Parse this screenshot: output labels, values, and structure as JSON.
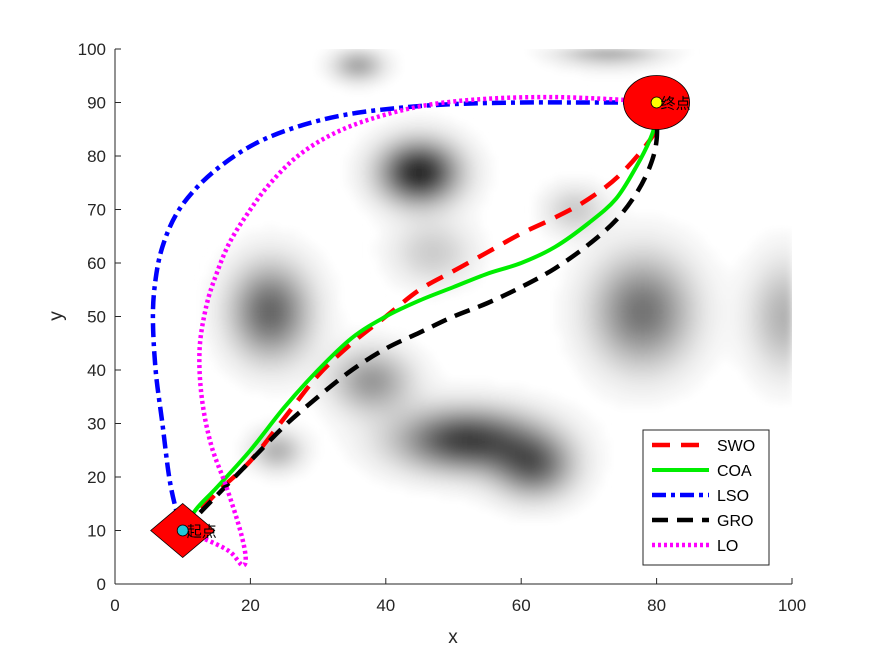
{
  "chart_data": {
    "type": "line",
    "xlabel": "x",
    "ylabel": "y",
    "xlim": [
      0,
      100
    ],
    "ylim": [
      0,
      100
    ],
    "xticks": [
      0,
      20,
      40,
      60,
      80,
      100
    ],
    "yticks": [
      0,
      10,
      20,
      30,
      40,
      50,
      60,
      70,
      80,
      90,
      100
    ],
    "grid": false,
    "legend_position": "bottom-right",
    "start": {
      "x": 10,
      "y": 10,
      "label": "起点",
      "color": "#ff0000"
    },
    "goal": {
      "x": 80,
      "y": 90,
      "label": "终点",
      "color": "#ff0000"
    },
    "obstacles": [
      {
        "x": 45,
        "y": 77,
        "sx": 4,
        "sy": 4,
        "amp": 0.85
      },
      {
        "x": 23,
        "y": 51,
        "sx": 4,
        "sy": 6,
        "amp": 0.6
      },
      {
        "x": 52,
        "y": 27,
        "sx": 7,
        "sy": 4,
        "amp": 0.75
      },
      {
        "x": 62,
        "y": 22,
        "sx": 4,
        "sy": 4,
        "amp": 0.55
      },
      {
        "x": 78,
        "y": 51,
        "sx": 5,
        "sy": 7,
        "amp": 0.55
      },
      {
        "x": 38,
        "y": 38,
        "sx": 4,
        "sy": 4,
        "amp": 0.4
      },
      {
        "x": 36,
        "y": 97,
        "sx": 2.5,
        "sy": 2,
        "amp": 0.35
      },
      {
        "x": 73,
        "y": 100,
        "sx": 5,
        "sy": 2,
        "amp": 0.35
      },
      {
        "x": 99,
        "y": 50,
        "sx": 3.5,
        "sy": 7,
        "amp": 0.3
      },
      {
        "x": 24,
        "y": 25,
        "sx": 2.5,
        "sy": 2.5,
        "amp": 0.3
      },
      {
        "x": 47,
        "y": 62,
        "sx": 4,
        "sy": 4,
        "amp": 0.2
      },
      {
        "x": 68,
        "y": 70,
        "sx": 3,
        "sy": 3,
        "amp": 0.2
      }
    ],
    "series": [
      {
        "name": "SWO",
        "color": "#ff0000",
        "dash": "18,11",
        "width": 4.5,
        "points": [
          [
            10,
            10
          ],
          [
            15,
            17
          ],
          [
            20,
            23
          ],
          [
            25,
            31
          ],
          [
            30,
            39
          ],
          [
            35,
            45
          ],
          [
            40,
            50
          ],
          [
            45,
            55
          ],
          [
            50,
            58.5
          ],
          [
            55,
            62
          ],
          [
            60,
            65.5
          ],
          [
            65,
            68.5
          ],
          [
            70,
            72
          ],
          [
            75,
            77
          ],
          [
            80,
            85
          ],
          [
            80,
            90
          ]
        ]
      },
      {
        "name": "COA",
        "color": "#00ee00",
        "dash": "",
        "width": 4,
        "points": [
          [
            10,
            10
          ],
          [
            12,
            14
          ],
          [
            15,
            18
          ],
          [
            20,
            25
          ],
          [
            25,
            33
          ],
          [
            30,
            40
          ],
          [
            35,
            46
          ],
          [
            40,
            50
          ],
          [
            45,
            53
          ],
          [
            50,
            55.5
          ],
          [
            55,
            58
          ],
          [
            60,
            60
          ],
          [
            65,
            63
          ],
          [
            70,
            67.5
          ],
          [
            74,
            72
          ],
          [
            77,
            78
          ],
          [
            79,
            83
          ],
          [
            80,
            87
          ],
          [
            80,
            90
          ]
        ]
      },
      {
        "name": "LSO",
        "color": "#0000ff",
        "dash": "14,5,4,5",
        "width": 4.5,
        "points": [
          [
            10,
            10
          ],
          [
            9,
            14
          ],
          [
            8,
            20
          ],
          [
            7,
            30
          ],
          [
            6,
            40
          ],
          [
            5.6,
            50
          ],
          [
            6,
            57
          ],
          [
            7,
            63
          ],
          [
            9,
            69
          ],
          [
            12,
            74
          ],
          [
            16,
            78.5
          ],
          [
            21,
            82.5
          ],
          [
            27,
            85.5
          ],
          [
            34,
            87.7
          ],
          [
            42,
            89
          ],
          [
            50,
            89.7
          ],
          [
            60,
            90
          ],
          [
            70,
            90
          ],
          [
            80,
            90
          ]
        ]
      },
      {
        "name": "GRO",
        "color": "#000000",
        "dash": "16,9",
        "width": 4.5,
        "points": [
          [
            10,
            10
          ],
          [
            15,
            16.5
          ],
          [
            20,
            23
          ],
          [
            25,
            29.5
          ],
          [
            30,
            35
          ],
          [
            35,
            40
          ],
          [
            40,
            44
          ],
          [
            45,
            47
          ],
          [
            50,
            50
          ],
          [
            55,
            52.5
          ],
          [
            60,
            55.5
          ],
          [
            65,
            59
          ],
          [
            70,
            63.5
          ],
          [
            74,
            68
          ],
          [
            77,
            73
          ],
          [
            79,
            78
          ],
          [
            80,
            83
          ],
          [
            80,
            90
          ]
        ]
      },
      {
        "name": "LO",
        "color": "#ff00ff",
        "dash": "3,3",
        "width": 4.5,
        "points": [
          [
            10,
            10
          ],
          [
            14,
            8
          ],
          [
            17,
            6
          ],
          [
            18.8,
            3.5
          ],
          [
            19.3,
            5
          ],
          [
            18.5,
            10
          ],
          [
            16.5,
            18
          ],
          [
            14.2,
            26
          ],
          [
            12.8,
            35
          ],
          [
            12.5,
            44
          ],
          [
            13.5,
            52
          ],
          [
            15,
            58
          ],
          [
            17,
            64
          ],
          [
            20,
            70
          ],
          [
            23,
            75
          ],
          [
            27,
            80
          ],
          [
            32,
            84
          ],
          [
            38,
            87
          ],
          [
            46,
            89.5
          ],
          [
            55,
            90.7
          ],
          [
            65,
            91
          ],
          [
            75,
            90.5
          ],
          [
            80,
            90
          ]
        ]
      }
    ]
  }
}
